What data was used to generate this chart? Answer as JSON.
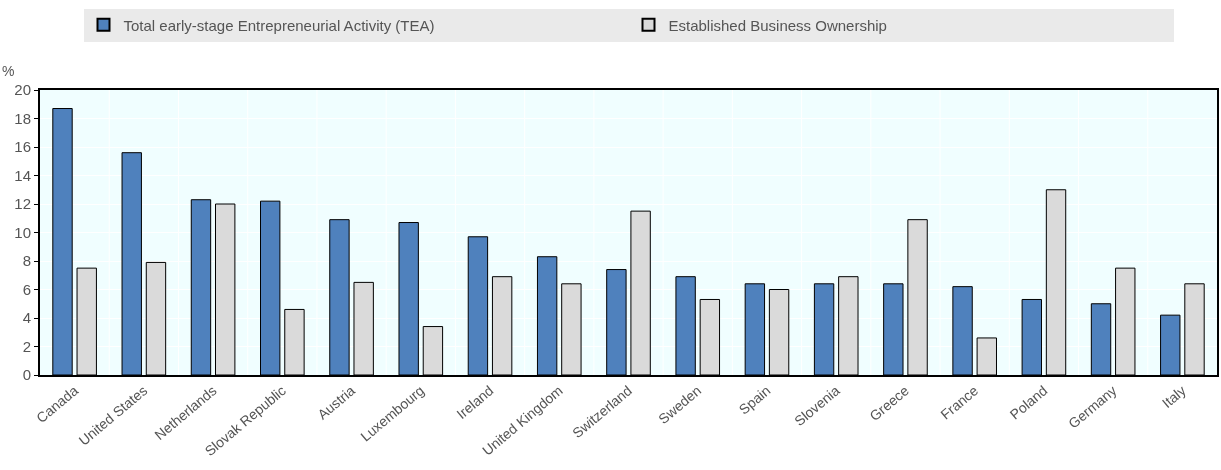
{
  "chart_data": {
    "type": "bar",
    "ylabel": "%",
    "categories": [
      "Canada",
      "United States",
      "Netherlands",
      "Slovak Republic",
      "Austria",
      "Luxembourg",
      "Ireland",
      "United Kingdom",
      "Switzerland",
      "Sweden",
      "Spain",
      "Slovenia",
      "Greece",
      "France",
      "Poland",
      "Germany",
      "Italy"
    ],
    "series": [
      {
        "name": "Total early-stage Entrepreneurial Activity (TEA)",
        "color": "#4f81bd",
        "values": [
          18.7,
          15.6,
          12.3,
          12.2,
          10.9,
          10.7,
          9.7,
          8.3,
          7.4,
          6.9,
          6.4,
          6.4,
          6.4,
          6.2,
          5.3,
          5.0,
          4.2
        ]
      },
      {
        "name": "Established Business Ownership",
        "color": "#dadada",
        "values": [
          7.5,
          7.9,
          12.0,
          4.6,
          6.5,
          3.4,
          6.9,
          6.4,
          11.5,
          5.3,
          6.0,
          6.9,
          10.9,
          2.6,
          13.0,
          7.5,
          6.4
        ]
      }
    ],
    "ylim": [
      0,
      20
    ],
    "yticks": [
      0,
      2,
      4,
      6,
      8,
      10,
      12,
      14,
      16,
      18,
      20
    ],
    "grid": true,
    "legend": "top"
  }
}
